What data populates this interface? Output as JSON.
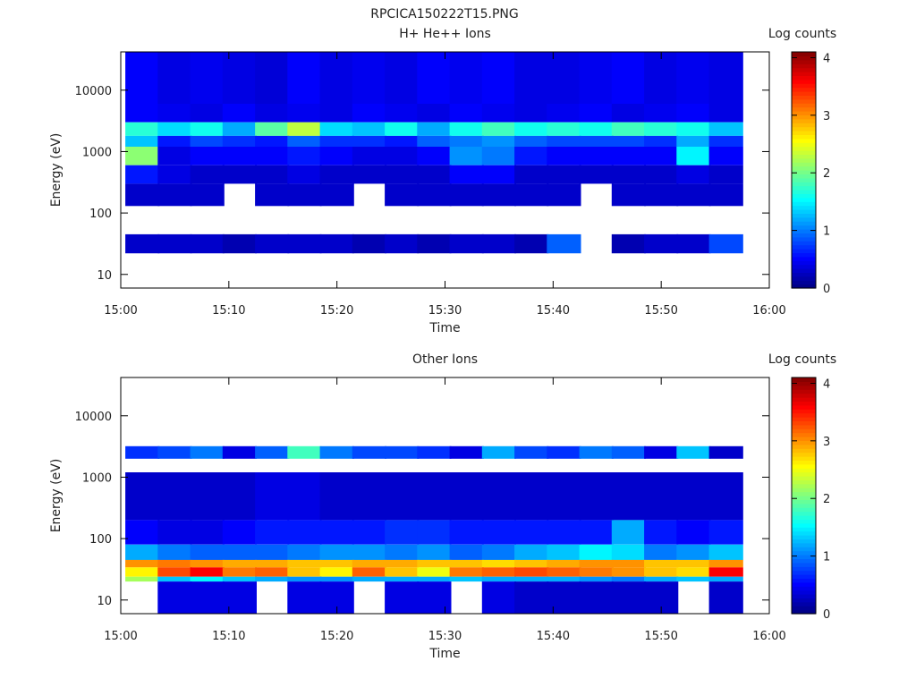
{
  "figure_title": "RPCICA150222T15.PNG",
  "colorbar": {
    "label": "Log counts",
    "ticks": [
      "0",
      "1",
      "2",
      "3",
      "4"
    ],
    "range": [
      0,
      4.1
    ],
    "colormap": "jet"
  },
  "chart_data": [
    {
      "type": "heatmap",
      "title": "H+ He++ Ions",
      "xlabel": "Time",
      "ylabel": "Energy (eV)",
      "x_ticks": [
        "15:00",
        "15:10",
        "15:20",
        "15:30",
        "15:40",
        "15:50",
        "16:00"
      ],
      "y_ticks": [
        "10",
        "100",
        "1000",
        "10000"
      ],
      "y_scale": "log",
      "xlim": [
        "15:00",
        "16:00"
      ],
      "ylim": [
        6,
        42000
      ],
      "time_bins": [
        "15:02",
        "15:05",
        "15:08",
        "15:11",
        "15:14",
        "15:17",
        "15:20",
        "15:23",
        "15:26",
        "15:29",
        "15:32",
        "15:35",
        "15:38",
        "15:41",
        "15:44",
        "15:47",
        "15:50",
        "15:53",
        "15:56"
      ],
      "bands": [
        {
          "e_min": 6000,
          "e_max": 42000,
          "level": [
            0.5,
            0.4,
            0.45,
            0.4,
            0.35,
            0.5,
            0.4,
            0.45,
            0.4,
            0.5,
            0.45,
            0.5,
            0.4,
            0.4,
            0.45,
            0.5,
            0.4,
            0.45,
            0.4
          ]
        },
        {
          "e_min": 3000,
          "e_max": 6000,
          "level": [
            0.5,
            0.45,
            0.4,
            0.5,
            0.4,
            0.45,
            0.4,
            0.5,
            0.45,
            0.4,
            0.5,
            0.45,
            0.4,
            0.45,
            0.5,
            0.4,
            0.45,
            0.5,
            0.4
          ]
        },
        {
          "e_min": 1800,
          "e_max": 3000,
          "level": [
            1.7,
            1.4,
            1.6,
            1.2,
            1.9,
            2.3,
            1.4,
            1.3,
            1.6,
            1.2,
            1.6,
            1.8,
            1.6,
            1.7,
            1.6,
            1.8,
            1.7,
            1.6,
            1.3
          ]
        },
        {
          "e_min": 1200,
          "e_max": 1800,
          "level": [
            1.3,
            0.6,
            0.8,
            0.7,
            0.6,
            0.9,
            0.7,
            0.7,
            0.6,
            0.9,
            1.0,
            1.1,
            0.9,
            0.8,
            0.8,
            0.8,
            0.7,
            1.2,
            0.7
          ]
        },
        {
          "e_min": 600,
          "e_max": 1200,
          "level": [
            2.1,
            0.4,
            0.5,
            0.5,
            0.5,
            0.6,
            0.5,
            0.4,
            0.4,
            0.5,
            1.1,
            1.0,
            0.6,
            0.5,
            0.5,
            0.5,
            0.5,
            1.5,
            0.5
          ]
        },
        {
          "e_min": 300,
          "e_max": 600,
          "level": [
            0.6,
            0.4,
            0.3,
            0.3,
            0.3,
            0.4,
            0.3,
            0.3,
            0.3,
            0.3,
            0.5,
            0.5,
            0.3,
            0.3,
            0.3,
            0.3,
            0.3,
            0.4,
            0.3
          ]
        },
        {
          "e_min": 130,
          "e_max": 300,
          "level": [
            0.3,
            0.3,
            0.3,
            0.0,
            0.3,
            0.3,
            0.3,
            0.0,
            0.3,
            0.3,
            0.3,
            0.3,
            0.3,
            0.3,
            0.0,
            0.3,
            0.3,
            0.3,
            0.3
          ]
        },
        {
          "e_min": 22,
          "e_max": 45,
          "level": [
            0.3,
            0.3,
            0.3,
            0.2,
            0.3,
            0.3,
            0.3,
            0.2,
            0.3,
            0.2,
            0.3,
            0.3,
            0.2,
            0.9,
            0.0,
            0.2,
            0.3,
            0.3,
            0.8
          ]
        }
      ]
    },
    {
      "type": "heatmap",
      "title": "Other Ions",
      "xlabel": "Time",
      "ylabel": "Energy (eV)",
      "x_ticks": [
        "15:00",
        "15:10",
        "15:20",
        "15:30",
        "15:40",
        "15:50",
        "16:00"
      ],
      "y_ticks": [
        "10",
        "100",
        "1000",
        "10000"
      ],
      "y_scale": "log",
      "xlim": [
        "15:00",
        "16:00"
      ],
      "ylim": [
        6,
        42000
      ],
      "time_bins": [
        "15:02",
        "15:05",
        "15:08",
        "15:11",
        "15:14",
        "15:17",
        "15:20",
        "15:23",
        "15:26",
        "15:29",
        "15:32",
        "15:35",
        "15:38",
        "15:41",
        "15:44",
        "15:47",
        "15:50",
        "15:53",
        "15:56"
      ],
      "bands": [
        {
          "e_min": 2000,
          "e_max": 3200,
          "level": [
            0.7,
            0.8,
            1.0,
            0.4,
            0.9,
            1.8,
            1.0,
            0.8,
            0.8,
            0.7,
            0.4,
            1.2,
            0.8,
            0.7,
            1.0,
            0.9,
            0.4,
            1.3,
            0.3
          ]
        },
        {
          "e_min": 200,
          "e_max": 1200,
          "level": [
            0.3,
            0.3,
            0.3,
            0.3,
            0.4,
            0.4,
            0.3,
            0.3,
            0.3,
            0.3,
            0.3,
            0.3,
            0.3,
            0.3,
            0.3,
            0.3,
            0.3,
            0.3,
            0.3
          ]
        },
        {
          "e_min": 80,
          "e_max": 200,
          "level": [
            0.5,
            0.4,
            0.4,
            0.5,
            0.6,
            0.6,
            0.6,
            0.6,
            0.7,
            0.7,
            0.6,
            0.6,
            0.6,
            0.6,
            0.6,
            1.2,
            0.6,
            0.5,
            0.6
          ]
        },
        {
          "e_min": 45,
          "e_max": 80,
          "level": [
            1.2,
            1.0,
            0.9,
            0.9,
            0.9,
            1.0,
            1.1,
            1.1,
            1.0,
            1.1,
            0.9,
            1.0,
            1.2,
            1.3,
            1.5,
            1.4,
            1.0,
            1.1,
            1.3
          ]
        },
        {
          "e_min": 34,
          "e_max": 45,
          "level": [
            3.0,
            3.1,
            3.0,
            2.9,
            2.9,
            2.8,
            2.8,
            2.9,
            2.9,
            2.8,
            2.8,
            2.7,
            2.8,
            2.9,
            3.0,
            3.0,
            2.8,
            2.8,
            3.0
          ]
        },
        {
          "e_min": 24,
          "e_max": 34,
          "level": [
            2.6,
            3.3,
            3.6,
            3.1,
            3.2,
            2.8,
            2.6,
            3.2,
            2.8,
            2.5,
            3.1,
            3.2,
            3.3,
            3.2,
            3.1,
            3.0,
            2.8,
            2.7,
            3.6
          ]
        },
        {
          "e_min": 20,
          "e_max": 24,
          "level": [
            2.2,
            1.3,
            1.5,
            1.3,
            1.2,
            1.1,
            1.1,
            1.2,
            1.2,
            1.2,
            1.3,
            1.2,
            1.2,
            1.2,
            1.1,
            1.0,
            1.2,
            1.3,
            1.2
          ]
        },
        {
          "e_min": 6,
          "e_max": 20,
          "level": [
            0.0,
            0.4,
            0.4,
            0.4,
            0.0,
            0.4,
            0.4,
            0.0,
            0.4,
            0.4,
            0.0,
            0.4,
            0.3,
            0.3,
            0.3,
            0.3,
            0.3,
            0.0,
            0.3
          ]
        }
      ]
    }
  ]
}
